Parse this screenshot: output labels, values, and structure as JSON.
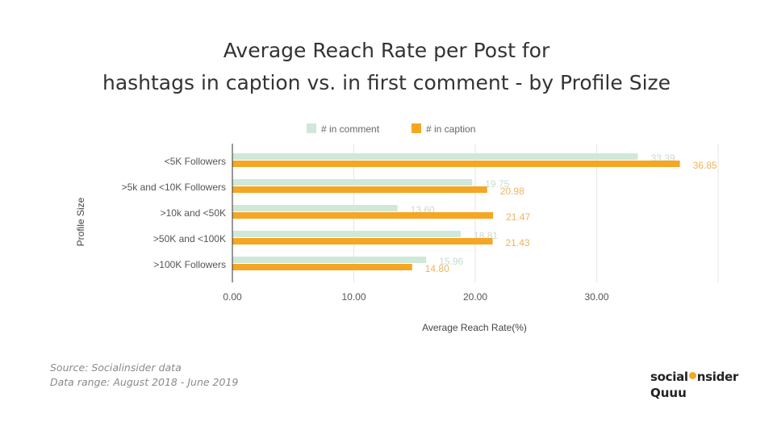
{
  "title_line1": "Average Reach Rate per Post for",
  "title_line2": "hashtags in caption vs. in first comment - by Profile Size",
  "source": "Source: Socialinsider data",
  "data_range": "Data range: August 2018 - June 2019",
  "logo_text_a": "social",
  "logo_text_b": "nsider",
  "logo_text_2": "Quuu",
  "colors": {
    "comment": "#cfe8da",
    "caption": "#f5a623",
    "comment_label": "#c5dccf",
    "caption_label": "#f0b45c"
  },
  "chart_data": {
    "type": "bar",
    "orientation": "horizontal",
    "categories": [
      "<5K Followers",
      ">5k and <10K Followers",
      ">10k and <50K",
      ">50K and <100K",
      ">100K Followers"
    ],
    "series": [
      {
        "name": "# in comment",
        "values": [
          33.39,
          19.75,
          13.6,
          18.81,
          15.96
        ]
      },
      {
        "name": "# in caption",
        "values": [
          36.85,
          20.98,
          21.47,
          21.43,
          14.8
        ]
      }
    ],
    "xlabel": "Average Reach Rate(%)",
    "ylabel": "Profile Size",
    "xlim": [
      0,
      40
    ],
    "xticks": [
      "0.00",
      "10.00",
      "20.00",
      "30.00"
    ],
    "legend": "top-center",
    "grid": true
  }
}
